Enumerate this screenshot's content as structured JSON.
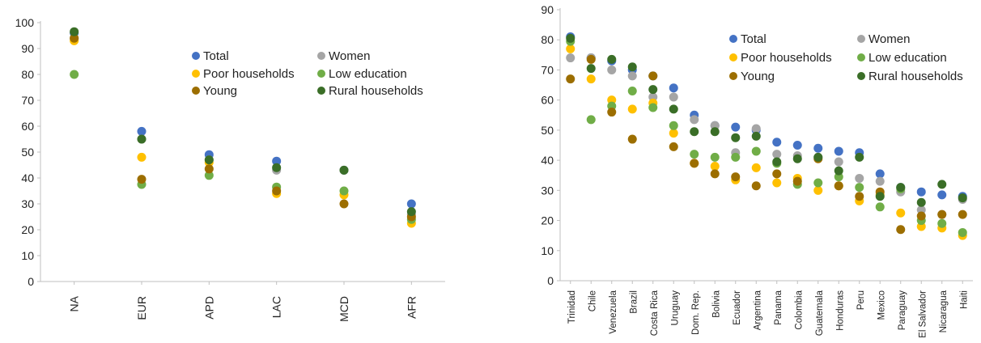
{
  "colors": {
    "Total": "#4472C4",
    "Women": "#A5A5A5",
    "Poor households": "#FFC000",
    "Low education": "#70AD47",
    "Young": "#9C6E00",
    "Rural households": "#3A6E27"
  },
  "chart_data": [
    {
      "type": "scatter",
      "categories": [
        "NA",
        "EUR",
        "APD",
        "LAC",
        "MCD",
        "AFR"
      ],
      "ylim": [
        0,
        100
      ],
      "yticks": [
        0,
        10,
        20,
        30,
        40,
        50,
        60,
        70,
        80,
        90,
        100
      ],
      "grid": false,
      "legend_placement": "top-right",
      "legend": [
        "Total",
        "Women",
        "Poor households",
        "Low education",
        "Young",
        "Rural households"
      ],
      "series": [
        {
          "name": "Total",
          "values": [
            96,
            58,
            49,
            46.5,
            43,
            30
          ]
        },
        {
          "name": "Women",
          "values": [
            94,
            55,
            47,
            43,
            43,
            26
          ]
        },
        {
          "name": "Poor households",
          "values": [
            93,
            48,
            46,
            34,
            33.5,
            22.5
          ]
        },
        {
          "name": "Low education",
          "values": [
            80,
            37.5,
            41,
            36.5,
            35,
            24
          ]
        },
        {
          "name": "Young",
          "values": [
            94,
            39.5,
            43.5,
            35,
            30,
            25
          ]
        },
        {
          "name": "Rural households",
          "values": [
            96.5,
            55,
            47,
            44,
            43,
            27
          ]
        }
      ]
    },
    {
      "type": "scatter",
      "categories": [
        "Trinidad",
        "Chile",
        "Venezuela",
        "Brazil",
        "Costa Rica",
        "Uruguay",
        "Dom. Rep.",
        "Bolivia",
        "Ecuador",
        "Argentina",
        "Panama",
        "Colombia",
        "Guatemala",
        "Honduras",
        "Peru",
        "Mexico",
        "Paraguay",
        "El Salvador",
        "Nicaragua",
        "Haiti"
      ],
      "ylim": [
        0,
        90
      ],
      "yticks": [
        0,
        10,
        20,
        30,
        40,
        50,
        60,
        70,
        80,
        90
      ],
      "grid": false,
      "legend_placement": "top-right",
      "legend": [
        "Total",
        "Women",
        "Poor households",
        "Low education",
        "Young",
        "Rural households"
      ],
      "series": [
        {
          "name": "Total",
          "values": [
            81,
            74,
            73,
            70,
            68,
            64,
            55,
            51.5,
            51,
            50,
            46,
            45,
            44,
            43,
            42.5,
            35.5,
            31,
            29.5,
            28.5,
            28
          ]
        },
        {
          "name": "Women",
          "values": [
            74,
            74,
            70,
            68,
            61,
            61,
            53.5,
            51.5,
            42.5,
            50.5,
            42,
            41.5,
            41,
            39.5,
            34,
            33,
            29.5,
            23.5,
            22,
            27
          ]
        },
        {
          "name": "Poor households",
          "values": [
            77,
            67,
            60,
            57,
            59,
            49,
            39,
            38,
            33.5,
            37.5,
            32.5,
            34,
            30,
            31.5,
            26.5,
            28.5,
            22.5,
            18,
            17.5,
            15
          ]
        },
        {
          "name": "Low education",
          "values": [
            79.5,
            53.5,
            58,
            63,
            57.5,
            51.5,
            42,
            41,
            41,
            43,
            39,
            32,
            32.5,
            34.5,
            31,
            24.5,
            30.5,
            20,
            19,
            16
          ]
        },
        {
          "name": "Young",
          "values": [
            67,
            73.5,
            56,
            47,
            68,
            44.5,
            39,
            35.5,
            34.5,
            31.5,
            35.5,
            33,
            40.5,
            31.5,
            28,
            29.5,
            17,
            21.5,
            22,
            22
          ]
        },
        {
          "name": "Rural households",
          "values": [
            80.5,
            70.5,
            73.5,
            71,
            63.5,
            57,
            49.5,
            49.5,
            47.5,
            48,
            39.5,
            40.5,
            41,
            36.5,
            41,
            28,
            31,
            26,
            32,
            27.5
          ]
        }
      ]
    }
  ]
}
